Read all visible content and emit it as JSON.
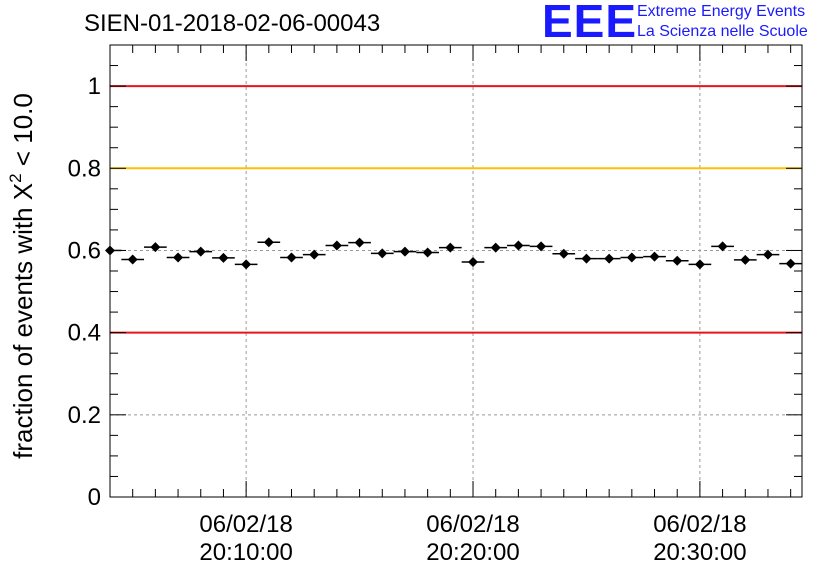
{
  "title": "SIEN-01-2018-02-06-00043",
  "logo": {
    "mark": "EEE",
    "line1": "Extreme Energy Events",
    "line2": "La Scienza nelle Scuole",
    "color": "#1a1aff"
  },
  "chart_data": {
    "type": "scatter",
    "title": "SIEN-01-2018-02-06-00043",
    "ylabel_prefix": "fraction of events with ",
    "ylabel_symbol": "X",
    "ylabel_superscript": "2",
    "ylabel_suffix": " < 10.0",
    "xlabel": "",
    "x_unit": "minutes after 20:00:00",
    "xlim": [
      4.0,
      34.5
    ],
    "ylim": [
      0,
      1.1
    ],
    "y_ticks": [
      {
        "value": 0,
        "label": "0"
      },
      {
        "value": 0.2,
        "label": "0.2"
      },
      {
        "value": 0.4,
        "label": "0.4"
      },
      {
        "value": 0.6,
        "label": "0.6"
      },
      {
        "value": 0.8,
        "label": "0.8"
      },
      {
        "value": 1,
        "label": "1"
      }
    ],
    "x_ticks": [
      {
        "value": 10,
        "date": "06/02/18",
        "time": "20:10:00"
      },
      {
        "value": 20,
        "date": "06/02/18",
        "time": "20:20:00"
      },
      {
        "value": 30,
        "date": "06/02/18",
        "time": "20:30:00"
      }
    ],
    "grid": true,
    "reference_lines": [
      {
        "y": 1.0,
        "color": "#e8141a"
      },
      {
        "y": 0.8,
        "color": "#ffc000"
      },
      {
        "y": 0.4,
        "color": "#e8141a"
      }
    ],
    "series": [
      {
        "name": "fraction",
        "marker": "diamond",
        "color": "#000000",
        "x_half_width": 0.5,
        "x": [
          4.0,
          5.0,
          6.0,
          7.0,
          8.0,
          9.0,
          10.0,
          11.0,
          12.0,
          13.0,
          14.0,
          15.0,
          16.0,
          17.0,
          18.0,
          19.0,
          20.0,
          21.0,
          22.0,
          23.0,
          24.0,
          25.0,
          26.0,
          27.0,
          28.0,
          29.0,
          30.0,
          31.0,
          32.0,
          33.0,
          34.0
        ],
        "values": [
          0.6,
          0.578,
          0.608,
          0.583,
          0.597,
          0.582,
          0.566,
          0.62,
          0.583,
          0.59,
          0.612,
          0.619,
          0.593,
          0.597,
          0.595,
          0.607,
          0.572,
          0.607,
          0.612,
          0.61,
          0.592,
          0.58,
          0.58,
          0.583,
          0.585,
          0.575,
          0.566,
          0.61,
          0.577,
          0.59,
          0.568
        ],
        "y_error": 0.009
      }
    ]
  }
}
